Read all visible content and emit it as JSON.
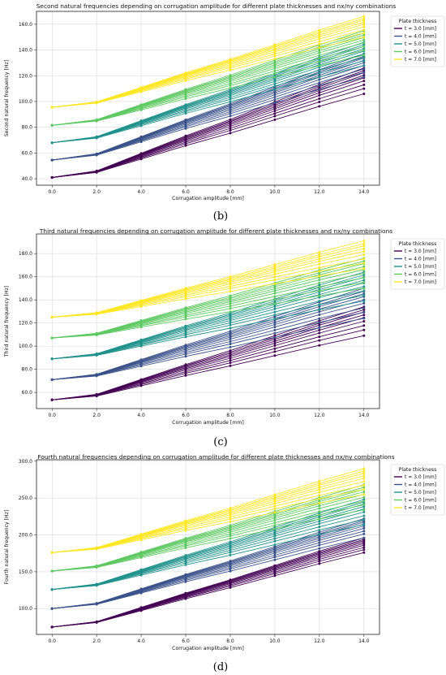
{
  "legend": {
    "title": "Plate thickness",
    "entries": [
      {
        "label": "t = 3.0 [mm]",
        "color": "#440154"
      },
      {
        "label": "t = 4.0 [mm]",
        "color": "#3b528b"
      },
      {
        "label": "t = 5.0 [mm]",
        "color": "#21918c"
      },
      {
        "label": "t = 6.0 [mm]",
        "color": "#5ec962"
      },
      {
        "label": "t = 7.0 [mm]",
        "color": "#fde725"
      }
    ]
  },
  "chart_data": [
    {
      "type": "line",
      "panel_label": "(b)",
      "title": "Second natural frequencies depending on corrugation amplitude for different plate thicknesses and nx/ny combinations",
      "xlabel": "Corrugation amplitude [mm]",
      "ylabel": "Second natural frequency [Hz]",
      "x": [
        0,
        2,
        4,
        6,
        8,
        10,
        12,
        14
      ],
      "xticks": [
        "0.0",
        "2.0",
        "4.0",
        "6.0",
        "8.0",
        "10.0",
        "12.0",
        "14.0"
      ],
      "yticks": [
        "40.0",
        "60.0",
        "80.0",
        "100.0",
        "120.0",
        "140.0",
        "160.0"
      ],
      "ylim": [
        35,
        170
      ],
      "grid": true,
      "legend_position": "outside-top-right",
      "groups": [
        {
          "name": "t = 3.0 [mm]",
          "start": 41,
          "low": 106,
          "high": 126
        },
        {
          "name": "t = 4.0 [mm]",
          "start": 54.5,
          "low": 119,
          "high": 137
        },
        {
          "name": "t = 5.0 [mm]",
          "start": 68,
          "low": 128,
          "high": 146
        },
        {
          "name": "t = 6.0 [mm]",
          "start": 81.5,
          "low": 136,
          "high": 155
        },
        {
          "name": "t = 7.0 [mm]",
          "start": 95.5,
          "low": 150,
          "high": 166
        }
      ]
    },
    {
      "type": "line",
      "panel_label": "(c)",
      "title": "Third natural frequencies depending on corrugation amplitude for different plate thicknesses and nx/ny combinations",
      "xlabel": "Corrugation amplitude [mm]",
      "ylabel": "Third natural frequency [Hz]",
      "x": [
        0,
        2,
        4,
        6,
        8,
        10,
        12,
        14
      ],
      "xticks": [
        "0.0",
        "2.0",
        "4.0",
        "6.0",
        "8.0",
        "10.0",
        "12.0",
        "14.0"
      ],
      "yticks": [
        "60.0",
        "80.0",
        "100.0",
        "120.0",
        "140.0",
        "160.0",
        "180.0"
      ],
      "ylim": [
        46,
        197
      ],
      "grid": true,
      "legend_position": "outside-top-right",
      "groups": [
        {
          "name": "t = 3.0 [mm]",
          "start": 53.5,
          "low": 109,
          "high": 134
        },
        {
          "name": "t = 4.0 [mm]",
          "start": 71,
          "low": 124,
          "high": 150
        },
        {
          "name": "t = 5.0 [mm]",
          "start": 89,
          "low": 139,
          "high": 164
        },
        {
          "name": "t = 6.0 [mm]",
          "start": 107,
          "low": 150,
          "high": 176
        },
        {
          "name": "t = 7.0 [mm]",
          "start": 125,
          "low": 167,
          "high": 191
        }
      ]
    },
    {
      "type": "line",
      "panel_label": "(d)",
      "title": "Fourth natural frequencies depending on corrugation amplitude for different plate thicknesses and nx/ny combinations",
      "xlabel": "Corrugation amplitude [mm]",
      "ylabel": "Fourth natural frequency [Hz]",
      "x": [
        0,
        2,
        4,
        6,
        8,
        10,
        12,
        14
      ],
      "xticks": [
        "0.0",
        "2.0",
        "4.0",
        "6.0",
        "8.0",
        "10.0",
        "12.0",
        "14.0"
      ],
      "yticks": [
        "100.0",
        "150.0",
        "200.0",
        "250.0",
        "300.0"
      ],
      "ylim": [
        65,
        302
      ],
      "grid": true,
      "legend_position": "outside-top-right",
      "groups": [
        {
          "name": "t = 3.0 [mm]",
          "start": 75,
          "low": 176,
          "high": 196
        },
        {
          "name": "t = 4.0 [mm]",
          "start": 100,
          "low": 196,
          "high": 222
        },
        {
          "name": "t = 5.0 [mm]",
          "start": 126,
          "low": 214,
          "high": 248
        },
        {
          "name": "t = 6.0 [mm]",
          "start": 151,
          "low": 234,
          "high": 268
        },
        {
          "name": "t = 7.0 [mm]",
          "start": 176,
          "low": 255,
          "high": 290
        }
      ]
    }
  ]
}
